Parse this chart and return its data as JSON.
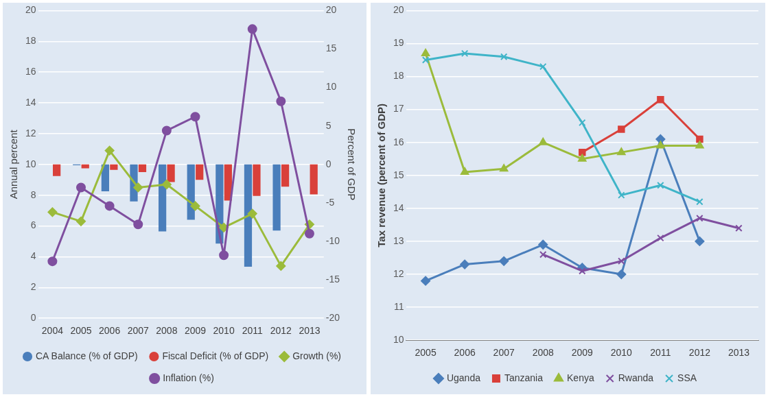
{
  "chart_data": [
    {
      "type": "bar",
      "ylabel": "Annual percent",
      "y2label": "Percent of GDP",
      "categories": [
        "2004",
        "2005",
        "2006",
        "2007",
        "2008",
        "2009",
        "2010",
        "2011",
        "2012",
        "2013"
      ],
      "series": [
        {
          "name": "CA Balance (% of GDP)",
          "color": "#4a7ebb",
          "axis": "y2",
          "values": [
            null,
            -0.1,
            -3.5,
            -4.8,
            -8.7,
            -7.2,
            -10.3,
            -13.3,
            -8.6,
            null
          ]
        },
        {
          "name": "Fiscal Deficit (% of GDP)",
          "color": "#d9403a",
          "axis": "y2",
          "values": [
            -1.5,
            -0.5,
            -0.7,
            -1.0,
            -2.3,
            -2.0,
            -4.7,
            -4.1,
            -2.9,
            -3.9
          ]
        },
        {
          "name": "Growth (%)",
          "color": "#9bbb3b",
          "type": "line",
          "marker": "diamond",
          "values": [
            6.9,
            6.3,
            10.9,
            8.5,
            8.7,
            7.3,
            5.9,
            6.8,
            3.4,
            6.1
          ]
        },
        {
          "name": "Inflation (%)",
          "color": "#7f4f9f",
          "type": "line",
          "marker": "circle",
          "values": [
            3.7,
            8.5,
            7.3,
            6.1,
            12.2,
            13.1,
            4.1,
            18.8,
            14.1,
            5.5
          ]
        }
      ],
      "ylim": [
        0,
        20
      ],
      "yticks": [
        0,
        2,
        4,
        6,
        8,
        10,
        12,
        14,
        16,
        18,
        20
      ],
      "y2lim": [
        -20,
        20
      ],
      "y2ticks": [
        -20,
        -15,
        -10,
        -5,
        0,
        5,
        10,
        15,
        20
      ],
      "grid": "y",
      "legend": "bottom"
    },
    {
      "type": "line",
      "ylabel": "Tax revenue (percent of GDP)",
      "categories": [
        "2005",
        "2006",
        "2007",
        "2008",
        "2009",
        "2010",
        "2011",
        "2012",
        "2013"
      ],
      "series": [
        {
          "name": "Uganda",
          "color": "#4a7ebb",
          "marker": "diamond",
          "values": [
            11.8,
            12.3,
            12.4,
            12.9,
            12.2,
            12.0,
            16.1,
            13.0,
            null
          ]
        },
        {
          "name": "Tanzania",
          "color": "#d9403a",
          "marker": "square",
          "values": [
            null,
            null,
            null,
            null,
            15.7,
            16.4,
            17.3,
            16.1,
            null
          ]
        },
        {
          "name": "Kenya",
          "color": "#9bbb3b",
          "marker": "triangle",
          "values": [
            18.7,
            15.1,
            15.2,
            16.0,
            15.5,
            15.7,
            15.9,
            15.9,
            null
          ]
        },
        {
          "name": "Rwanda",
          "color": "#7f4f9f",
          "marker": "cross",
          "values": [
            null,
            null,
            null,
            12.6,
            12.1,
            12.4,
            13.1,
            13.7,
            13.4
          ]
        },
        {
          "name": "SSA",
          "color": "#3fb4c8",
          "marker": "cross",
          "values": [
            18.5,
            18.7,
            18.6,
            18.3,
            16.6,
            14.4,
            14.7,
            14.2,
            null
          ]
        }
      ],
      "ylim": [
        10,
        20
      ],
      "yticks": [
        10,
        11,
        12,
        13,
        14,
        15,
        16,
        17,
        18,
        19,
        20
      ],
      "grid": "y",
      "legend": "bottom"
    }
  ]
}
